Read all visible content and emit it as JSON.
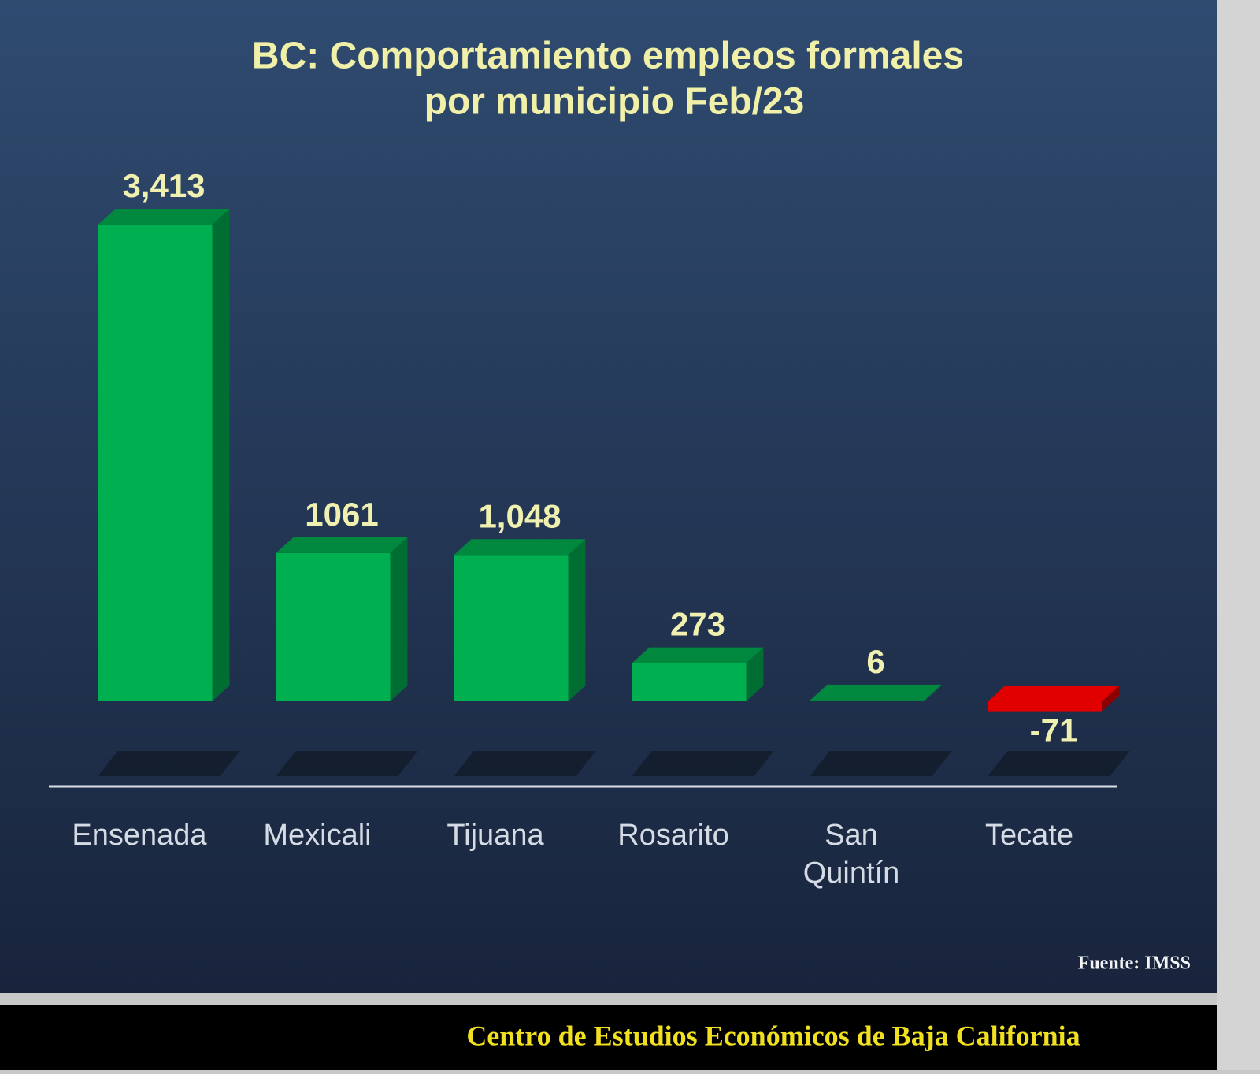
{
  "chart_data": {
    "type": "bar",
    "title": [
      "BC:  Comportamiento empleos formales",
      "por municipio  Feb/23"
    ],
    "categories": [
      "Ensenada",
      "Mexicali",
      "Tijuana",
      "Rosarito",
      "San Quintín",
      "Tecate"
    ],
    "values": [
      3413,
      1061,
      1048,
      273,
      6,
      -71
    ],
    "value_labels": [
      "3,413",
      "1061",
      "1,048",
      "273",
      "6",
      "-71"
    ],
    "colors": [
      "#00b050",
      "#00b050",
      "#00b050",
      "#00b050",
      "#00b050",
      "#e00000"
    ],
    "source": "Fuente: IMSS",
    "footer": "Centro de Estudios Económicos de Baja California"
  }
}
